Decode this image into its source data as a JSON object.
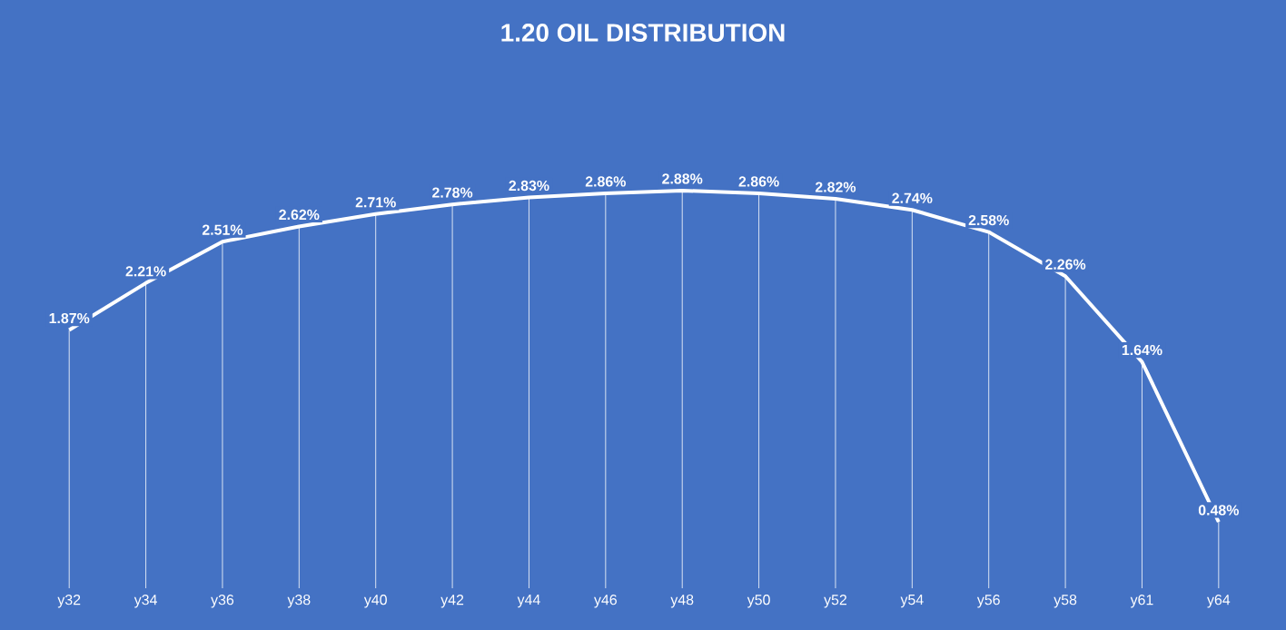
{
  "chart_data": {
    "type": "line",
    "title": "1.20 OIL DISTRIBUTION",
    "categories": [
      "y32",
      "y34",
      "y36",
      "y38",
      "y40",
      "y42",
      "y44",
      "y46",
      "y48",
      "y50",
      "y52",
      "y54",
      "y56",
      "y58",
      "y61",
      "y64"
    ],
    "values": [
      1.87,
      2.21,
      2.51,
      2.62,
      2.71,
      2.78,
      2.83,
      2.86,
      2.88,
      2.86,
      2.82,
      2.74,
      2.58,
      2.26,
      1.64,
      0.48
    ],
    "value_labels": [
      "1.87%",
      "2.21%",
      "2.51%",
      "2.62%",
      "2.71%",
      "2.78%",
      "2.83%",
      "2.86%",
      "2.88%",
      "2.86%",
      "2.82%",
      "2.74%",
      "2.58%",
      "2.26%",
      "1.64%",
      "0.48%"
    ],
    "color": "#ffffff",
    "marker": "none",
    "line_style": "solid",
    "grid": "x"
  }
}
